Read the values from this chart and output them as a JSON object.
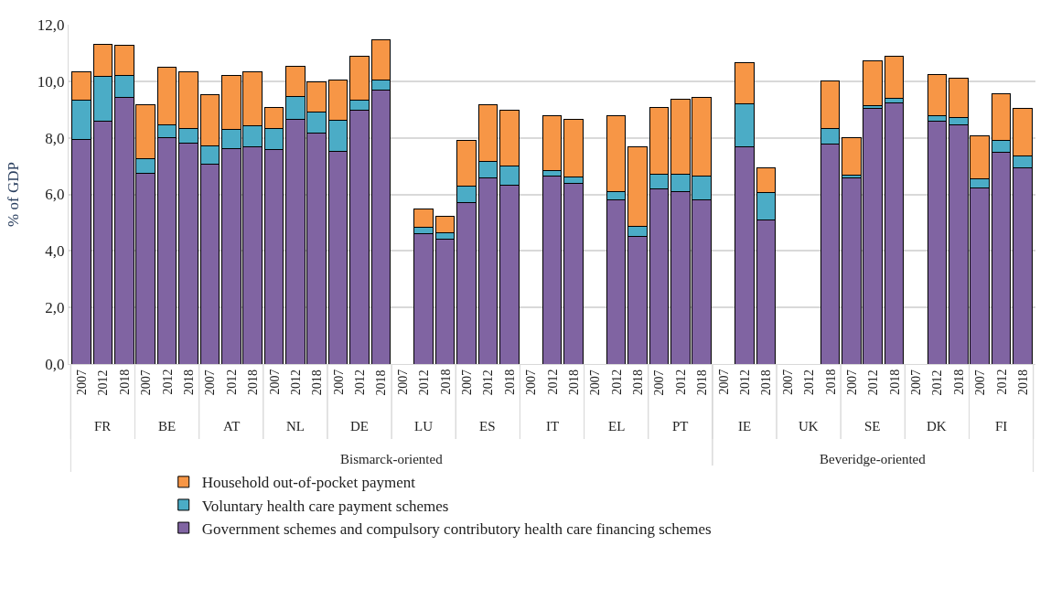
{
  "chart_data": {
    "type": "bar",
    "stacked": true,
    "ylabel": "% of GDP",
    "categories": [
      [
        "Bismarck-oriented",
        "FR",
        "2007"
      ],
      [
        null,
        null,
        "2012"
      ],
      [
        null,
        null,
        "2018"
      ],
      [
        null,
        "BE",
        "2007"
      ],
      [
        null,
        null,
        "2012"
      ],
      [
        null,
        null,
        "2018"
      ],
      [
        null,
        "AT",
        "2007"
      ],
      [
        null,
        null,
        "2012"
      ],
      [
        null,
        null,
        "2018"
      ],
      [
        null,
        "NL",
        "2007"
      ],
      [
        null,
        null,
        "2012"
      ],
      [
        null,
        null,
        "2018"
      ],
      [
        null,
        "DE",
        "2007"
      ],
      [
        null,
        null,
        "2012"
      ],
      [
        null,
        null,
        "2018"
      ],
      [
        null,
        "LU",
        "2007"
      ],
      [
        null,
        null,
        "2012"
      ],
      [
        null,
        null,
        "2018"
      ],
      [
        null,
        "ES",
        "2007"
      ],
      [
        null,
        null,
        "2012"
      ],
      [
        null,
        null,
        "2018"
      ],
      [
        null,
        "IT",
        "2007"
      ],
      [
        null,
        null,
        "2012"
      ],
      [
        null,
        null,
        "2018"
      ],
      [
        null,
        "EL",
        "2007"
      ],
      [
        null,
        null,
        "2012"
      ],
      [
        null,
        null,
        "2018"
      ],
      [
        null,
        "PT",
        "2007"
      ],
      [
        null,
        null,
        "2012"
      ],
      [
        null,
        null,
        "2018"
      ],
      [
        "Beveridge-oriented",
        "IE",
        "2007"
      ],
      [
        null,
        null,
        "2012"
      ],
      [
        null,
        null,
        "2018"
      ],
      [
        null,
        "UK",
        "2007"
      ],
      [
        null,
        null,
        "2012"
      ],
      [
        null,
        null,
        "2018"
      ],
      [
        null,
        "SE",
        "2007"
      ],
      [
        null,
        null,
        "2012"
      ],
      [
        null,
        null,
        "2018"
      ],
      [
        null,
        "DK",
        "2007"
      ],
      [
        null,
        null,
        "2012"
      ],
      [
        null,
        null,
        "2018"
      ],
      [
        null,
        "FI",
        "2007"
      ],
      [
        null,
        null,
        "2012"
      ],
      [
        null,
        null,
        "2018"
      ]
    ],
    "series": [
      {
        "name": "Government schemes and compulsory contributory health care financing schemes",
        "color": "#8064a2",
        "values": [
          7.95,
          8.6,
          9.43,
          6.75,
          8.02,
          7.81,
          7.08,
          7.61,
          7.69,
          7.6,
          8.64,
          8.18,
          7.52,
          8.98,
          9.7,
          null,
          4.61,
          4.42,
          5.71,
          6.59,
          6.31,
          null,
          6.66,
          6.4,
          null,
          5.8,
          4.51,
          6.2,
          6.11,
          5.8,
          null,
          7.69,
          5.11,
          null,
          null,
          7.77,
          6.58,
          9.04,
          9.25,
          null,
          8.58,
          8.47,
          6.22,
          7.48,
          6.95
        ]
      },
      {
        "name": "Voluntary health care payment schemes",
        "color": "#4bacc6",
        "values": [
          1.39,
          1.56,
          0.79,
          0.51,
          0.44,
          0.53,
          0.65,
          0.68,
          0.73,
          0.73,
          0.82,
          0.72,
          1.09,
          0.35,
          0.33,
          null,
          0.24,
          0.23,
          0.57,
          0.57,
          0.68,
          null,
          0.18,
          0.22,
          null,
          0.29,
          0.37,
          0.52,
          0.6,
          0.85,
          null,
          1.51,
          0.96,
          null,
          null,
          0.55,
          0.11,
          0.11,
          0.14,
          null,
          0.21,
          0.24,
          0.32,
          0.42,
          0.4
        ]
      },
      {
        "name": "Household out-of-pocket payment",
        "color": "#f79646",
        "values": [
          1.0,
          1.15,
          1.04,
          1.92,
          2.05,
          1.98,
          1.8,
          1.9,
          1.9,
          0.73,
          1.07,
          1.08,
          1.44,
          1.54,
          1.45,
          null,
          0.64,
          0.56,
          1.64,
          2.01,
          1.99,
          null,
          1.95,
          2.04,
          null,
          2.69,
          2.81,
          2.36,
          2.65,
          2.79,
          null,
          1.47,
          0.87,
          null,
          null,
          1.68,
          1.3,
          1.58,
          1.51,
          null,
          1.45,
          1.39,
          1.54,
          1.67,
          1.7
        ]
      }
    ],
    "ylim": [
      0,
      12
    ],
    "yticks": [
      {
        "value": 0,
        "label": "0,0"
      },
      {
        "value": 2,
        "label": "2,0"
      },
      {
        "value": 4,
        "label": "4,0"
      },
      {
        "value": 6,
        "label": "6,0"
      },
      {
        "value": 8,
        "label": "8,0"
      },
      {
        "value": 10,
        "label": "10,0"
      },
      {
        "value": 12,
        "label": "12,0"
      }
    ],
    "grid": "y",
    "legend": "bottom"
  }
}
